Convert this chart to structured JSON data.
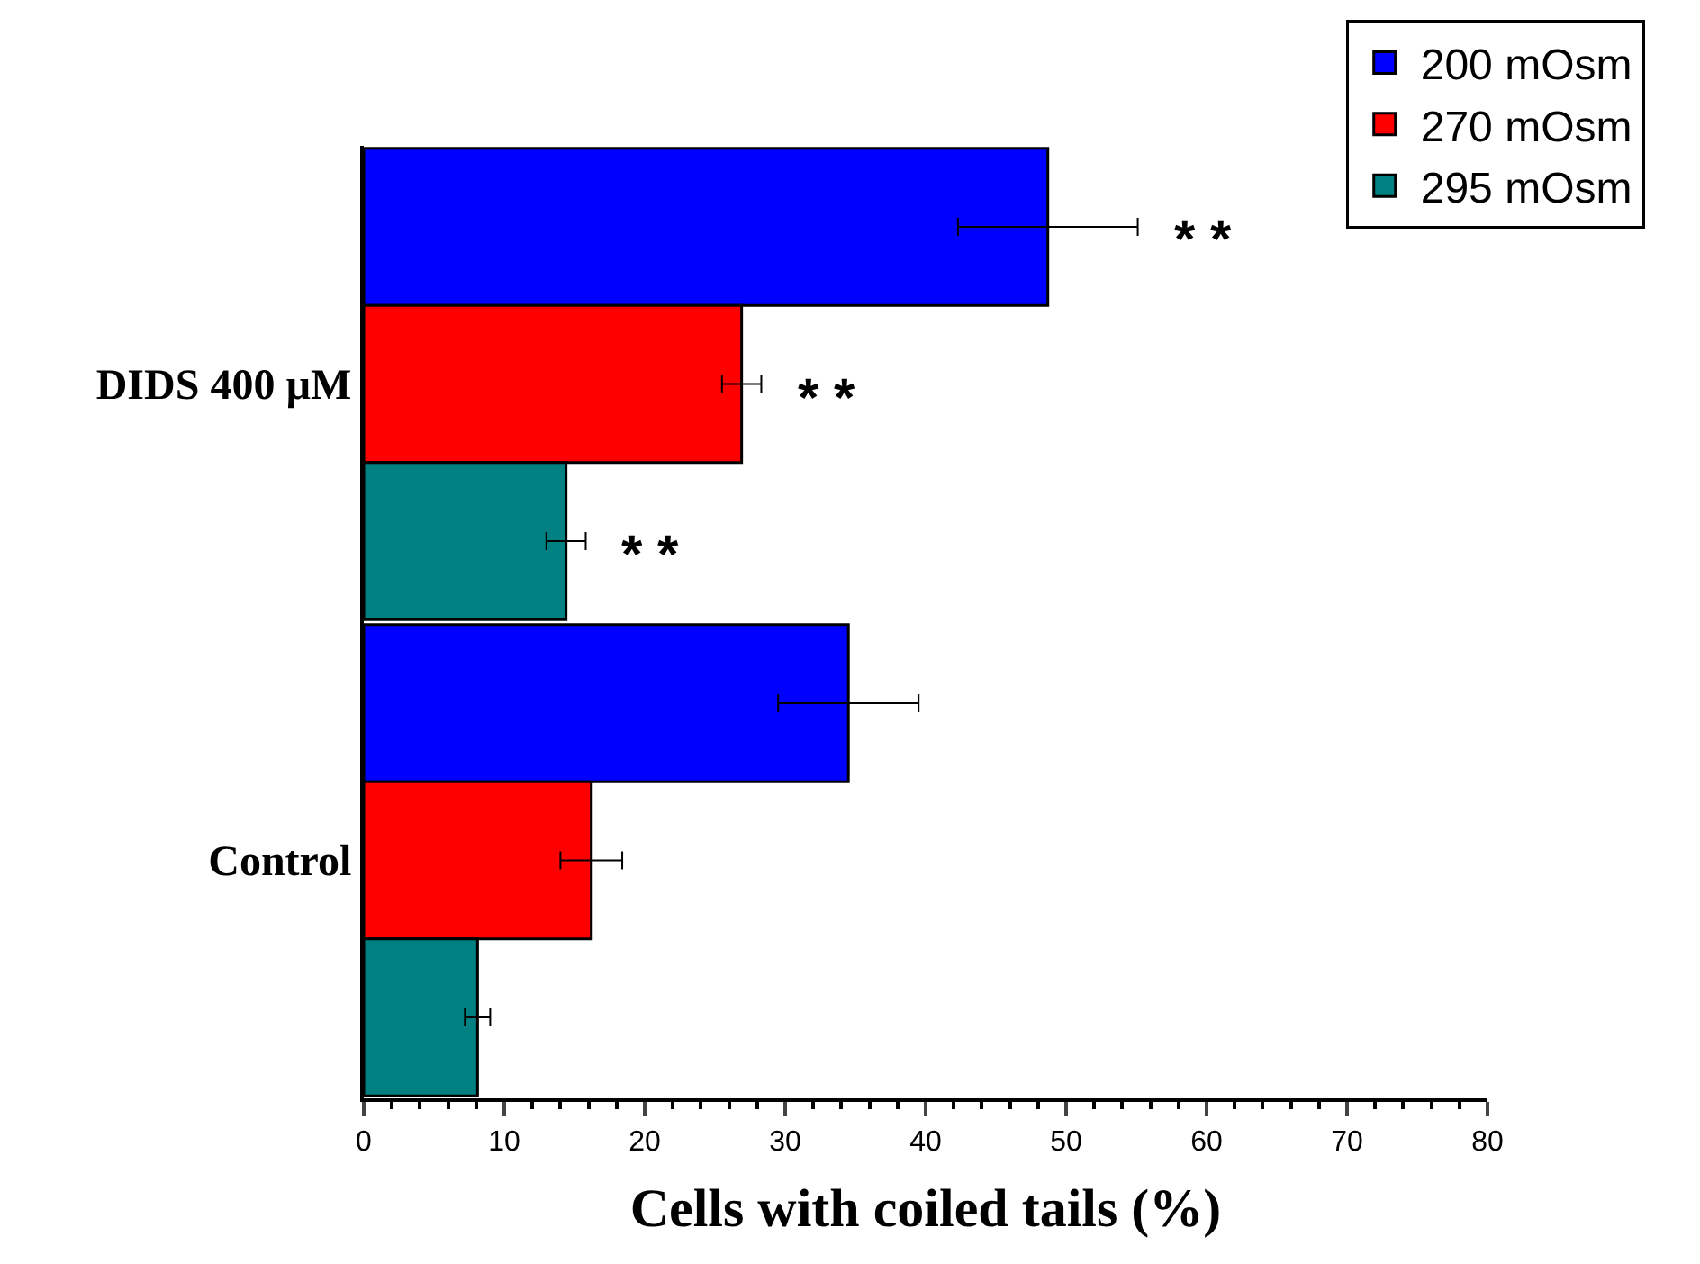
{
  "chart_data": {
    "type": "bar",
    "orientation": "horizontal",
    "categories": [
      "DIDS 400 µM",
      "Control"
    ],
    "series": [
      {
        "name": "200 mOsm",
        "color": "#0000ff",
        "values": [
          48.7,
          34.5
        ],
        "errors": [
          6.4,
          5.0
        ]
      },
      {
        "name": "270 mOsm",
        "color": "#ff0000",
        "values": [
          26.9,
          16.2
        ],
        "errors": [
          1.4,
          2.2
        ]
      },
      {
        "name": "295 mOsm",
        "color": "#008080",
        "values": [
          14.4,
          8.1
        ],
        "errors": [
          1.4,
          0.9
        ]
      }
    ],
    "xlabel": "Cells with coiled tails (%)",
    "xlim": [
      0,
      80
    ],
    "xticks": [
      0,
      10,
      20,
      30,
      40,
      50,
      60,
      70,
      80
    ],
    "annotations": [
      "* *",
      "* *",
      "* *"
    ],
    "legend": "top right"
  }
}
